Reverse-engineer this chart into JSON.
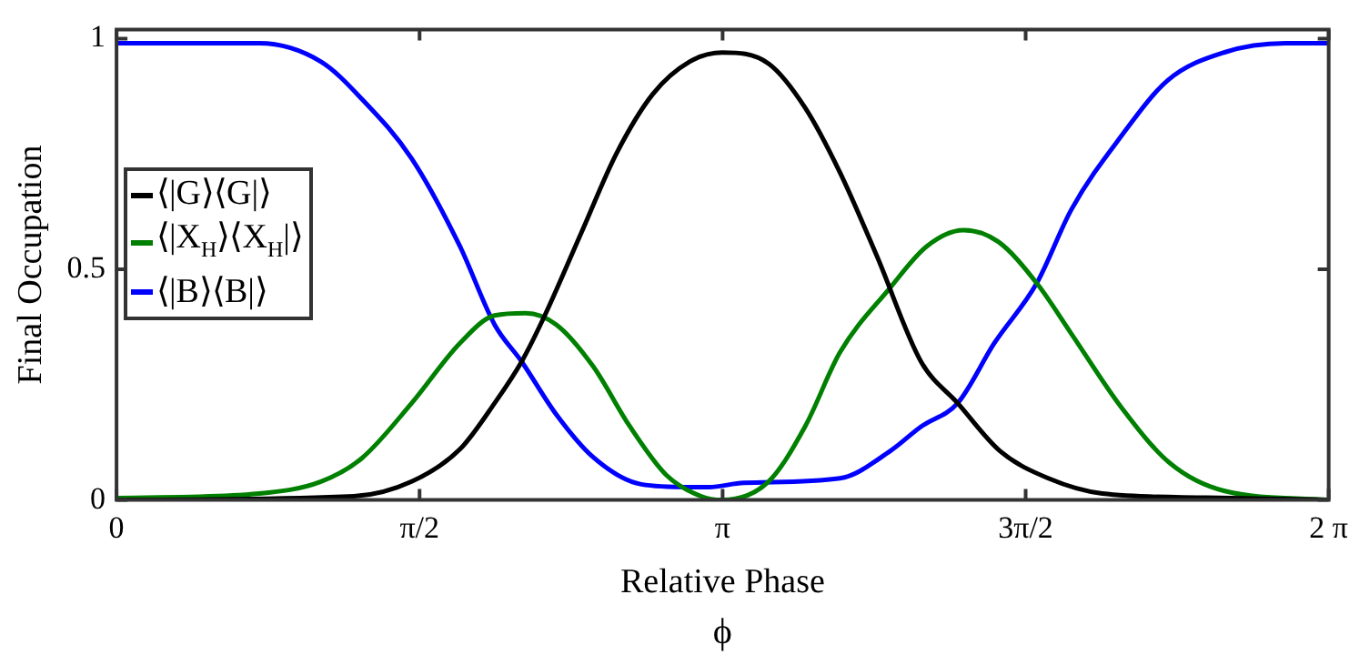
{
  "chart_data": {
    "type": "line",
    "xlabel": "Relative Phase",
    "ylabel": "Final Occupation",
    "annotations": [
      "ϕ"
    ],
    "xlim": [
      0,
      6.2832
    ],
    "xticks": [
      0,
      {
        "value": 1.5708,
        "label": "π/2"
      },
      {
        "value": 3.1416,
        "label": "π"
      },
      {
        "value": 4.7124,
        "label": "3π/2"
      },
      {
        "value": 6.2832,
        "label": "2 π"
      }
    ],
    "ylim": [
      0,
      1.02
    ],
    "yticks": [
      0,
      0.5,
      1
    ],
    "grid": false,
    "legend": "left",
    "marker": "none",
    "line_style": "solid",
    "series": [
      {
        "name": "⟨|G⟩⟨G|⟩",
        "color": "#000000",
        "x": [
          0,
          1.23,
          1.53,
          1.78,
          1.96,
          2.1,
          2.22,
          2.41,
          2.59,
          2.78,
          2.97,
          3.14,
          3.38,
          3.57,
          3.75,
          3.94,
          4.17,
          4.36,
          4.58,
          4.83,
          5.11,
          5.65,
          6.28
        ],
        "values": [
          0,
          0.008,
          0.04,
          0.11,
          0.21,
          0.3,
          0.4,
          0.58,
          0.75,
          0.88,
          0.95,
          0.97,
          0.946,
          0.85,
          0.71,
          0.53,
          0.3,
          0.21,
          0.106,
          0.047,
          0.014,
          0.005,
          0
        ]
      },
      {
        "name": "⟨|X$_{H}$⟩⟨X$_{H}$|⟩",
        "color": "#008000",
        "x": [
          0,
          0.74,
          1.06,
          1.27,
          1.53,
          1.78,
          1.96,
          2.12,
          2.28,
          2.47,
          2.66,
          2.85,
          3.03,
          3.14,
          3.38,
          3.57,
          3.75,
          4.01,
          4.2,
          4.39,
          4.57,
          4.77,
          4.95,
          5.21,
          5.46,
          5.74,
          6.28
        ],
        "values": [
          0.004,
          0.014,
          0.04,
          0.09,
          0.21,
          0.34,
          0.4,
          0.405,
          0.38,
          0.29,
          0.16,
          0.054,
          0.008,
          0,
          0.04,
          0.16,
          0.32,
          0.46,
          0.55,
          0.585,
          0.56,
          0.47,
          0.36,
          0.2,
          0.08,
          0.02,
          0
        ]
      },
      {
        "name": "⟨|B⟩⟨B|⟩",
        "color": "#0000ff",
        "x": [
          0,
          0.74,
          1.06,
          1.27,
          1.53,
          1.78,
          1.96,
          2.1,
          2.28,
          2.47,
          2.72,
          2.97,
          3.07,
          3.25,
          3.75,
          4.01,
          4.17,
          4.36,
          4.55,
          4.77,
          4.95,
          5.21,
          5.45,
          5.74,
          6.06,
          6.28
        ],
        "values": [
          0.99,
          0.99,
          0.95,
          0.87,
          0.74,
          0.55,
          0.38,
          0.3,
          0.185,
          0.093,
          0.034,
          0.028,
          0.028,
          0.037,
          0.047,
          0.106,
          0.159,
          0.21,
          0.34,
          0.47,
          0.63,
          0.79,
          0.91,
          0.97,
          0.99,
          0.99
        ]
      }
    ]
  }
}
